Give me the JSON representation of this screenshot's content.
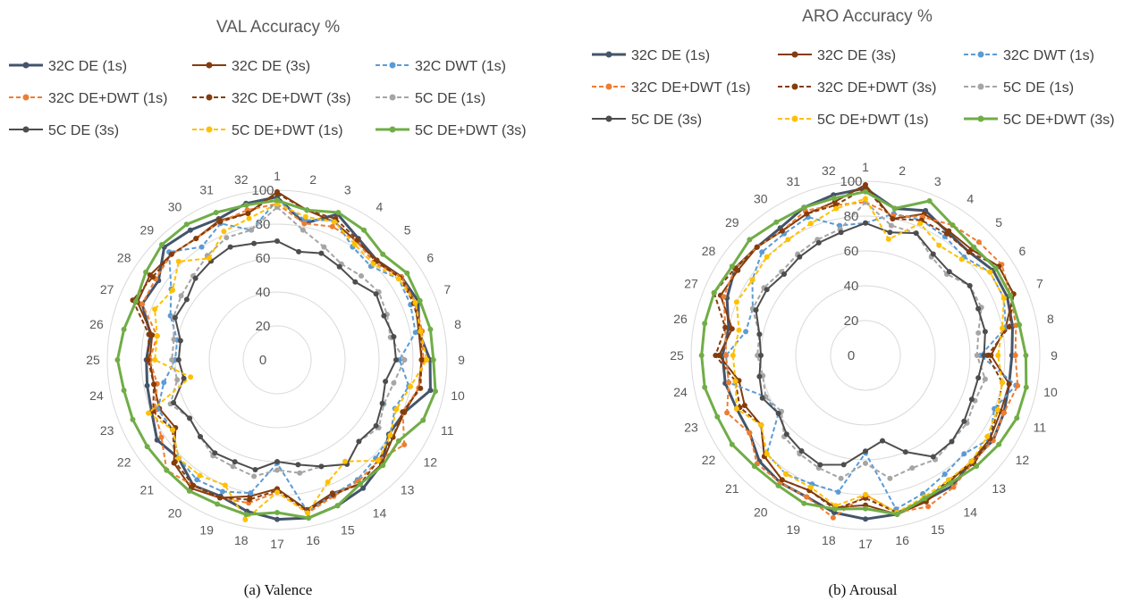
{
  "chart_data": [
    {
      "type": "radar",
      "title": "VAL Accuracy %",
      "caption": "(a) Valence",
      "categories": [
        "1",
        "2",
        "3",
        "4",
        "5",
        "6",
        "7",
        "8",
        "9",
        "10",
        "11",
        "12",
        "13",
        "14",
        "15",
        "16",
        "17",
        "18",
        "19",
        "20",
        "21",
        "22",
        "23",
        "24",
        "25",
        "26",
        "27",
        "28",
        "29",
        "30",
        "31",
        "32"
      ],
      "rlim": [
        0,
        100
      ],
      "rticks": [
        "0",
        "20",
        "40",
        "60",
        "80",
        "100"
      ],
      "grid": true,
      "legend": "top",
      "series": [
        {
          "name": "32C DE (1s)",
          "color": "#44546A",
          "dash": "solid",
          "width": 3,
          "values": [
            96,
            82,
            93,
            86,
            83,
            88,
            90,
            85,
            90,
            92,
            81,
            79,
            87,
            91,
            93,
            95,
            94,
            91,
            87,
            89,
            82,
            85,
            80,
            78,
            77,
            76,
            86,
            84,
            94,
            92,
            90,
            94
          ]
        },
        {
          "name": "32C DE (3s)",
          "color": "#843C0C",
          "dash": "solid",
          "width": 2,
          "values": [
            99,
            90,
            88,
            84,
            83,
            88,
            88,
            85,
            85,
            85,
            81,
            82,
            87,
            88,
            85,
            90,
            76,
            82,
            88,
            91,
            86,
            72,
            75,
            74,
            75,
            75,
            89,
            90,
            88,
            86,
            89,
            88
          ]
        },
        {
          "name": "32C DWT (1s)",
          "color": "#5B9BD5",
          "dash": "dashed",
          "width": 2,
          "values": [
            94,
            84,
            89,
            80,
            78,
            86,
            85,
            83,
            72,
            79,
            75,
            80,
            82,
            85,
            86,
            91,
            61,
            80,
            84,
            85,
            82,
            74,
            76,
            68,
            60,
            60,
            68,
            75,
            90,
            80,
            87,
            78
          ]
        },
        {
          "name": "32C DE+DWT (1s)",
          "color": "#ED7D31",
          "dash": "dashed",
          "width": 2,
          "values": [
            92,
            82,
            85,
            84,
            81,
            88,
            88,
            87,
            86,
            85,
            80,
            90,
            84,
            86,
            87,
            92,
            78,
            86,
            88,
            89,
            92,
            82,
            78,
            72,
            75,
            72,
            86,
            86,
            88,
            86,
            88,
            90
          ]
        },
        {
          "name": "32C DE+DWT (3s)",
          "color": "#843C0C",
          "dash": "dashed",
          "width": 2,
          "values": [
            98,
            90,
            90,
            85,
            82,
            87,
            87,
            86,
            85,
            86,
            80,
            82,
            84,
            88,
            86,
            91,
            77,
            84,
            88,
            89,
            85,
            74,
            79,
            74,
            76,
            77,
            92,
            88,
            88,
            86,
            88,
            88
          ]
        },
        {
          "name": "5C DE (1s)",
          "color": "#A5A5A5",
          "dash": "dashed",
          "width": 2,
          "values": [
            90,
            78,
            72,
            68,
            70,
            72,
            70,
            68,
            75,
            70,
            68,
            72,
            68,
            74,
            68,
            68,
            65,
            70,
            68,
            68,
            64,
            62,
            68,
            60,
            62,
            62,
            66,
            68,
            70,
            74,
            78,
            78
          ]
        },
        {
          "name": "5C DE (3s)",
          "color": "#4D4D4D",
          "dash": "solid",
          "width": 2,
          "values": [
            70,
            65,
            68,
            66,
            65,
            70,
            68,
            70,
            70,
            65,
            67,
            70,
            68,
            74,
            68,
            63,
            60,
            66,
            65,
            66,
            64,
            62,
            66,
            56,
            58,
            58,
            65,
            64,
            68,
            70,
            72,
            70
          ]
        },
        {
          "name": "5C DE+DWT (1s)",
          "color": "#FFC000",
          "dash": "dashed",
          "width": 2,
          "values": [
            92,
            86,
            88,
            82,
            80,
            86,
            88,
            86,
            88,
            80,
            76,
            80,
            84,
            72,
            78,
            92,
            78,
            96,
            80,
            82,
            82,
            74,
            82,
            52,
            72,
            72,
            78,
            74,
            82,
            72,
            82,
            85
          ]
        },
        {
          "name": "5C DE+DWT (3s)",
          "color": "#70AD47",
          "dash": "solid",
          "width": 3,
          "values": [
            94,
            90,
            94,
            92,
            88,
            92,
            91,
            92,
            92,
            95,
            93,
            86,
            88,
            88,
            93,
            95,
            90,
            93,
            92,
            93,
            92,
            92,
            92,
            92,
            94,
            92,
            90,
            93,
            96,
            96,
            94,
            93
          ]
        }
      ]
    },
    {
      "type": "radar",
      "title": "ARO Accuracy %",
      "caption": "(b) Arousal",
      "categories": [
        "1",
        "2",
        "3",
        "4",
        "5",
        "6",
        "7",
        "8",
        "9",
        "10",
        "11",
        "12",
        "13",
        "14",
        "15",
        "16",
        "17",
        "18",
        "19",
        "20",
        "21",
        "22",
        "23",
        "24",
        "25",
        "26",
        "27",
        "28",
        "29",
        "30",
        "31",
        "32"
      ],
      "rlim": [
        0,
        100
      ],
      "rticks": [
        "0",
        "20",
        "40",
        "60",
        "80",
        "100"
      ],
      "grid": true,
      "legend": "top",
      "series": [
        {
          "name": "32C DE (1s)",
          "color": "#44546A",
          "dash": "solid",
          "width": 3,
          "values": [
            96,
            86,
            90,
            85,
            84,
            88,
            88,
            86,
            84,
            84,
            86,
            88,
            86,
            90,
            90,
            93,
            94,
            92,
            88,
            88,
            86,
            80,
            80,
            82,
            82,
            80,
            86,
            90,
            88,
            88,
            92,
            94
          ]
        },
        {
          "name": "32C DE (3s)",
          "color": "#843C0C",
          "dash": "solid",
          "width": 2,
          "values": [
            98,
            80,
            88,
            86,
            86,
            92,
            92,
            82,
            72,
            84,
            84,
            86,
            86,
            87,
            91,
            93,
            86,
            89,
            84,
            86,
            82,
            72,
            75,
            74,
            84,
            78,
            90,
            88,
            88,
            86,
            88,
            90
          ]
        },
        {
          "name": "32C DWT (1s)",
          "color": "#5B9BD5",
          "dash": "dashed",
          "width": 2,
          "values": [
            76,
            83,
            84,
            82,
            80,
            86,
            86,
            82,
            66,
            88,
            80,
            86,
            80,
            82,
            86,
            90,
            56,
            80,
            80,
            82,
            80,
            60,
            62,
            80,
            80,
            70,
            70,
            78,
            84,
            84,
            86,
            76
          ]
        },
        {
          "name": "32C DE+DWT (1s)",
          "color": "#ED7D31",
          "dash": "dashed",
          "width": 2,
          "values": [
            88,
            82,
            86,
            90,
            92,
            94,
            90,
            88,
            86,
            89,
            86,
            88,
            87,
            91,
            94,
            92,
            80,
            95,
            88,
            88,
            88,
            80,
            86,
            80,
            80,
            82,
            88,
            90,
            88,
            86,
            90,
            88
          ]
        },
        {
          "name": "32C DE+DWT (3s)",
          "color": "#843C0C",
          "dash": "dashed",
          "width": 2,
          "values": [
            96,
            80,
            84,
            84,
            84,
            92,
            92,
            84,
            70,
            80,
            82,
            86,
            88,
            86,
            90,
            92,
            82,
            90,
            84,
            86,
            82,
            72,
            78,
            76,
            86,
            82,
            94,
            90,
            88,
            86,
            88,
            88
          ]
        },
        {
          "name": "5C DE (1s)",
          "color": "#A5A5A5",
          "dash": "dashed",
          "width": 2,
          "values": [
            88,
            76,
            76,
            68,
            66,
            72,
            72,
            66,
            64,
            70,
            68,
            70,
            70,
            72,
            70,
            72,
            62,
            72,
            70,
            68,
            66,
            58,
            62,
            60,
            62,
            62,
            70,
            70,
            68,
            70,
            72,
            74
          ]
        },
        {
          "name": "5C DE (3s)",
          "color": "#4D4D4D",
          "dash": "solid",
          "width": 2,
          "values": [
            76,
            72,
            76,
            70,
            68,
            72,
            70,
            70,
            68,
            66,
            66,
            68,
            70,
            70,
            60,
            50,
            55,
            64,
            68,
            66,
            64,
            60,
            64,
            62,
            60,
            62,
            68,
            68,
            66,
            68,
            70,
            72
          ]
        },
        {
          "name": "5C DE+DWT (1s)",
          "color": "#FFC000",
          "dash": "dashed",
          "width": 2,
          "values": [
            90,
            68,
            82,
            76,
            78,
            86,
            86,
            80,
            76,
            80,
            82,
            84,
            86,
            86,
            88,
            92,
            80,
            88,
            82,
            82,
            80,
            72,
            80,
            76,
            76,
            74,
            80,
            78,
            80,
            80,
            82,
            86
          ]
        },
        {
          "name": "5C DE+DWT (3s)",
          "color": "#70AD47",
          "dash": "solid",
          "width": 3,
          "values": [
            94,
            86,
            96,
            90,
            88,
            90,
            90,
            90,
            92,
            94,
            94,
            92,
            90,
            88,
            89,
            93,
            88,
            90,
            92,
            90,
            90,
            92,
            92,
            94,
            94,
            94,
            94,
            92,
            94,
            92,
            92,
            92
          ]
        }
      ]
    }
  ]
}
